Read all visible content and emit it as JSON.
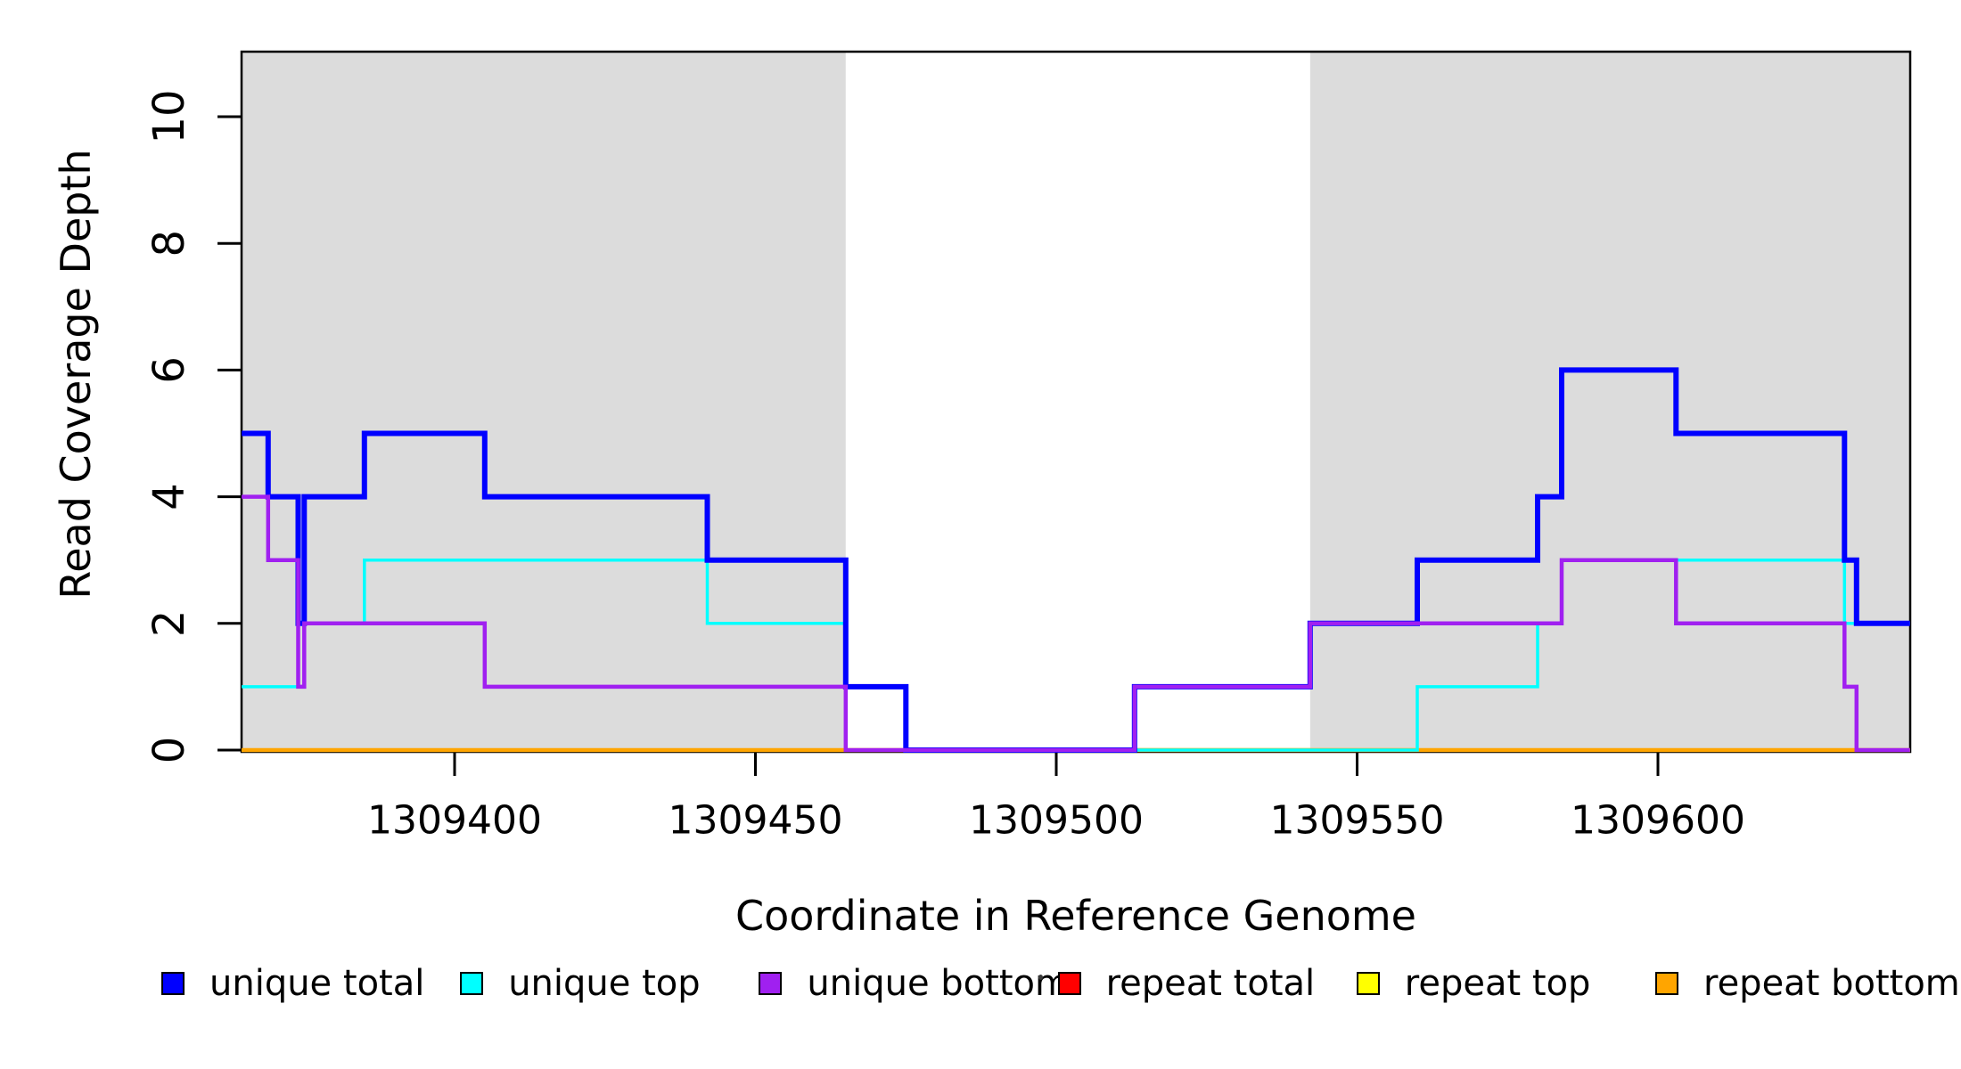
{
  "chart_data": {
    "type": "line",
    "subtype": "step-coverage",
    "title": "",
    "xlabel": "Coordinate in Reference Genome",
    "ylabel": "Read Coverage Depth",
    "xlim": [
      1309364.6,
      1309641.9
    ],
    "ylim": [
      0,
      11
    ],
    "x_ticks": [
      1309400,
      1309450,
      1309500,
      1309550,
      1309600
    ],
    "y_ticks": [
      0,
      2,
      4,
      6,
      8,
      10
    ],
    "grid": false,
    "legend_position": "bottom",
    "background_color": "#ffffff",
    "shade_color": "#DCDCDC",
    "shaded_regions": [
      {
        "name": "repeat-region-left",
        "x0": 1309364.6,
        "x1": 1309465
      },
      {
        "name": "repeat-region-right",
        "x0": 1309542.2,
        "x1": 1309641.9
      }
    ],
    "series": [
      {
        "name": "unique total",
        "color": "#0000FF",
        "line_width": 6,
        "steps": [
          [
            1309364.6,
            5
          ],
          [
            1309369,
            4
          ],
          [
            1309374,
            2
          ],
          [
            1309375,
            4
          ],
          [
            1309385,
            5
          ],
          [
            1309405,
            4
          ],
          [
            1309442,
            3
          ],
          [
            1309465,
            1
          ],
          [
            1309475,
            0
          ],
          [
            1309513,
            1
          ],
          [
            1309542.2,
            2
          ],
          [
            1309560,
            3
          ],
          [
            1309580,
            4
          ],
          [
            1309584,
            6
          ],
          [
            1309603,
            5
          ],
          [
            1309631,
            3
          ],
          [
            1309633,
            2
          ]
        ]
      },
      {
        "name": "unique top",
        "color": "#00FFFF",
        "line_width": 3.5,
        "steps": [
          [
            1309364.6,
            1
          ],
          [
            1309375,
            2
          ],
          [
            1309385,
            3
          ],
          [
            1309442,
            2
          ],
          [
            1309465,
            1
          ],
          [
            1309475,
            0
          ],
          [
            1309560,
            1
          ],
          [
            1309580,
            2
          ],
          [
            1309584,
            3
          ],
          [
            1309631,
            2
          ]
        ]
      },
      {
        "name": "unique bottom",
        "color": "#A020F0",
        "line_width": 4.5,
        "steps": [
          [
            1309364.6,
            4
          ],
          [
            1309369,
            3
          ],
          [
            1309374,
            1
          ],
          [
            1309375,
            2
          ],
          [
            1309405,
            1
          ],
          [
            1309465,
            0
          ],
          [
            1309513,
            1
          ],
          [
            1309542.2,
            2
          ],
          [
            1309584,
            3
          ],
          [
            1309603,
            2
          ],
          [
            1309631,
            1
          ],
          [
            1309633,
            0
          ]
        ]
      },
      {
        "name": "repeat total",
        "color": "#FF0000",
        "line_width": 3.5,
        "steps": [
          [
            1309364.6,
            0
          ]
        ]
      },
      {
        "name": "repeat top",
        "color": "#FFFF00",
        "line_width": 3.5,
        "steps": [
          [
            1309364.6,
            0
          ]
        ]
      },
      {
        "name": "repeat bottom",
        "color": "#FFA500",
        "line_width": 4.5,
        "steps": [
          [
            1309364.6,
            0
          ]
        ]
      }
    ],
    "draw_order": [
      "repeat total",
      "repeat top",
      "repeat bottom",
      "unique top",
      "unique total",
      "unique bottom"
    ],
    "axis_color": "#000000"
  }
}
